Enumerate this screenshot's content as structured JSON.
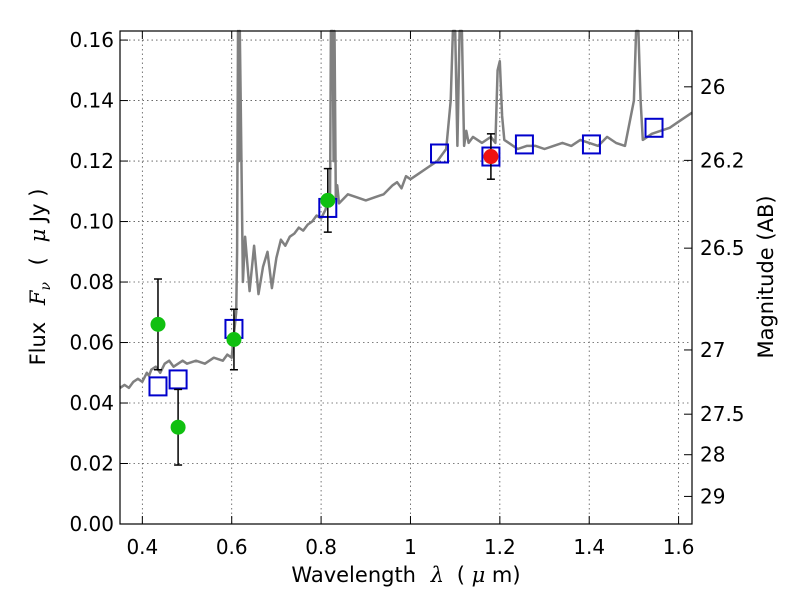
{
  "chart_data": {
    "type": "scatter",
    "title": "",
    "xlabel": {
      "prefix": "Wavelength",
      "symbol": "λ",
      "unit_open": "(",
      "unit_symbol": "μ",
      "unit_rest": "m)"
    },
    "ylabel": {
      "prefix": "Flux",
      "symbol": "F",
      "subscript": "ν",
      "unit_open": "(",
      "unit_symbol": "μ",
      "unit_rest": "Jy )"
    },
    "ylabel_right": "Magnitude (AB)",
    "xlim": [
      0.35,
      1.63
    ],
    "ylim": [
      0.0,
      0.163
    ],
    "grid": true,
    "grid_style": "dotted",
    "x_ticks": [
      {
        "value": 0.4,
        "label": "0.4"
      },
      {
        "value": 0.6,
        "label": "0.6"
      },
      {
        "value": 0.8,
        "label": "0.8"
      },
      {
        "value": 1.0,
        "label": "1"
      },
      {
        "value": 1.2,
        "label": "1.2"
      },
      {
        "value": 1.4,
        "label": "1.4"
      },
      {
        "value": 1.6,
        "label": "1.6"
      }
    ],
    "y_ticks": [
      {
        "value": 0.0,
        "label": "0.00"
      },
      {
        "value": 0.02,
        "label": "0.02"
      },
      {
        "value": 0.04,
        "label": "0.04"
      },
      {
        "value": 0.06,
        "label": "0.06"
      },
      {
        "value": 0.08,
        "label": "0.08"
      },
      {
        "value": 0.1,
        "label": "0.10"
      },
      {
        "value": 0.12,
        "label": "0.12"
      },
      {
        "value": 0.14,
        "label": "0.14"
      },
      {
        "value": 0.16,
        "label": "0.16"
      }
    ],
    "right_ticks": [
      {
        "mag": 26,
        "label": "26"
      },
      {
        "mag": 26.2,
        "label": "26.2"
      },
      {
        "mag": 26.5,
        "label": "26.5"
      },
      {
        "mag": 27,
        "label": "27"
      },
      {
        "mag": 27.5,
        "label": "27.5"
      },
      {
        "mag": 28,
        "label": "28"
      },
      {
        "mag": 29,
        "label": "29"
      }
    ],
    "colors": {
      "sed": "#808080",
      "model_box": "#0000cc",
      "model_box_inner": "#b03030",
      "obs_green": "#10c010",
      "obs_red": "#ee1111",
      "errorbar": "#000000",
      "grid": "#555555"
    },
    "sed_model": {
      "x": [
        0.35,
        0.36,
        0.37,
        0.38,
        0.39,
        0.4,
        0.41,
        0.415,
        0.42,
        0.43,
        0.44,
        0.45,
        0.46,
        0.47,
        0.48,
        0.49,
        0.5,
        0.52,
        0.54,
        0.56,
        0.58,
        0.59,
        0.6,
        0.605,
        0.61,
        0.612,
        0.614,
        0.616,
        0.618,
        0.62,
        0.625,
        0.63,
        0.64,
        0.65,
        0.66,
        0.67,
        0.68,
        0.69,
        0.7,
        0.71,
        0.72,
        0.73,
        0.74,
        0.75,
        0.76,
        0.77,
        0.78,
        0.79,
        0.8,
        0.81,
        0.815,
        0.82,
        0.822,
        0.826,
        0.828,
        0.83,
        0.833,
        0.836,
        0.84,
        0.86,
        0.88,
        0.9,
        0.92,
        0.94,
        0.96,
        0.97,
        0.98,
        0.99,
        1.0,
        1.02,
        1.04,
        1.06,
        1.07,
        1.08,
        1.09,
        1.095,
        1.1,
        1.105,
        1.11,
        1.115,
        1.12,
        1.125,
        1.13,
        1.14,
        1.15,
        1.16,
        1.17,
        1.18,
        1.19,
        1.195,
        1.2,
        1.205,
        1.21,
        1.22,
        1.24,
        1.26,
        1.28,
        1.3,
        1.32,
        1.34,
        1.36,
        1.38,
        1.4,
        1.42,
        1.44,
        1.46,
        1.48,
        1.5,
        1.505,
        1.51,
        1.515,
        1.52,
        1.53,
        1.54,
        1.56,
        1.58,
        1.6,
        1.62,
        1.63
      ],
      "y": [
        0.045,
        0.046,
        0.045,
        0.047,
        0.048,
        0.047,
        0.05,
        0.049,
        0.051,
        0.052,
        0.05,
        0.053,
        0.054,
        0.052,
        0.053,
        0.054,
        0.053,
        0.054,
        0.053,
        0.055,
        0.054,
        0.056,
        0.055,
        0.063,
        0.07,
        0.09,
        0.163,
        0.12,
        0.163,
        0.14,
        0.08,
        0.095,
        0.077,
        0.092,
        0.076,
        0.085,
        0.09,
        0.078,
        0.088,
        0.094,
        0.092,
        0.095,
        0.096,
        0.098,
        0.097,
        0.099,
        0.1,
        0.102,
        0.101,
        0.104,
        0.108,
        0.105,
        0.163,
        0.163,
        0.12,
        0.163,
        0.108,
        0.112,
        0.106,
        0.109,
        0.108,
        0.107,
        0.108,
        0.109,
        0.112,
        0.113,
        0.111,
        0.115,
        0.114,
        0.116,
        0.118,
        0.12,
        0.122,
        0.124,
        0.14,
        0.163,
        0.163,
        0.125,
        0.163,
        0.163,
        0.125,
        0.13,
        0.126,
        0.128,
        0.127,
        0.126,
        0.127,
        0.128,
        0.126,
        0.15,
        0.153,
        0.135,
        0.127,
        0.126,
        0.124,
        0.125,
        0.125,
        0.124,
        0.125,
        0.126,
        0.125,
        0.127,
        0.126,
        0.125,
        0.128,
        0.126,
        0.125,
        0.14,
        0.163,
        0.163,
        0.14,
        0.127,
        0.128,
        0.129,
        0.13,
        0.131,
        0.133,
        0.135,
        0.136
      ]
    },
    "model_photometry": {
      "x": [
        0.435,
        0.48,
        0.605,
        0.815,
        1.065,
        1.18,
        1.255,
        1.405,
        1.545
      ],
      "y": [
        0.0455,
        0.0478,
        0.0645,
        0.1045,
        0.1225,
        0.1215,
        0.1255,
        0.1255,
        0.131
      ]
    },
    "observed_hst_optical": {
      "x": [
        0.435,
        0.48,
        0.605,
        0.815
      ],
      "y": [
        0.066,
        0.032,
        0.061,
        0.107
      ],
      "yerr": [
        0.015,
        0.0125,
        0.01,
        0.0105
      ]
    },
    "observed_hst_ir": {
      "x": [
        1.18
      ],
      "y": [
        0.1215
      ],
      "yerr": [
        0.0075
      ]
    }
  }
}
